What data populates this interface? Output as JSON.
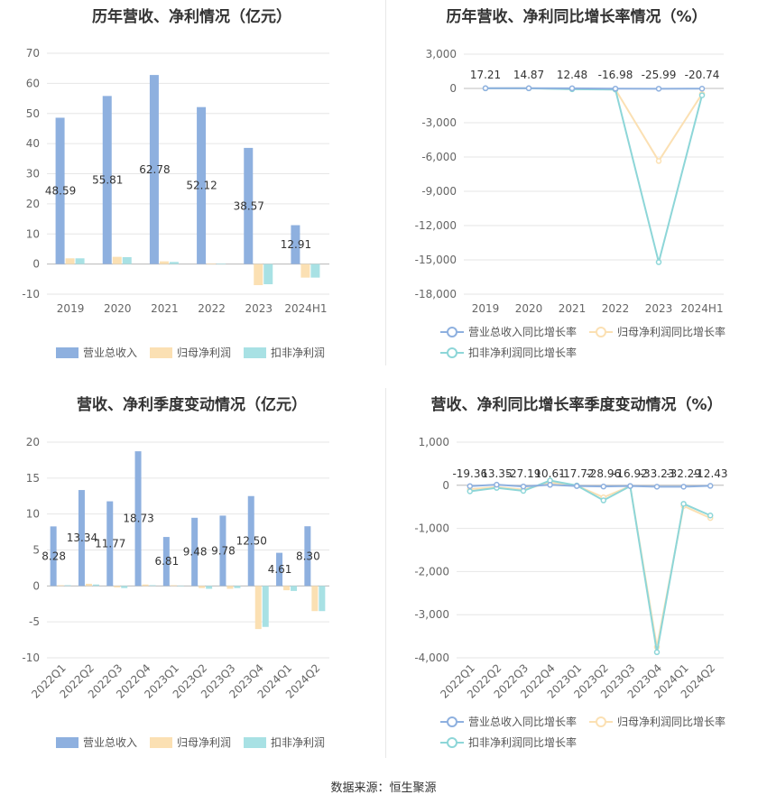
{
  "source": "数据来源：恒生聚源",
  "chart_data": [
    {
      "type": "bar",
      "title": "历年营收、净利情况（亿元）",
      "categories": [
        "2019",
        "2020",
        "2021",
        "2022",
        "2023",
        "2024H1"
      ],
      "ylim": [
        -10,
        70
      ],
      "yticks": [
        "-10",
        "0",
        "10",
        "20",
        "30",
        "40",
        "50",
        "60",
        "70"
      ],
      "series": [
        {
          "name": "营业总收入",
          "color": "#8eb0df",
          "values": [
            48.59,
            55.81,
            62.78,
            52.12,
            38.57,
            12.91
          ],
          "labels": [
            "48.59",
            "55.81",
            "62.78",
            "52.12",
            "38.57",
            "12.91"
          ]
        },
        {
          "name": "归母净利润",
          "color": "#fbe0b3",
          "values": [
            1.9,
            2.4,
            0.9,
            0.2,
            -7.0,
            -4.5
          ]
        },
        {
          "name": "扣非净利润",
          "color": "#a8e1e4",
          "values": [
            1.9,
            2.3,
            0.7,
            0.1,
            -6.7,
            -4.5
          ]
        }
      ]
    },
    {
      "type": "line",
      "title": "历年营收、净利同比增长率情况（%）",
      "categories": [
        "2019",
        "2020",
        "2021",
        "2022",
        "2023",
        "2024H1"
      ],
      "ylim": [
        -18000,
        3000
      ],
      "yticks": [
        "-18,000",
        "-15,000",
        "-12,000",
        "-9,000",
        "-6,000",
        "-3,000",
        "0",
        "3,000"
      ],
      "series": [
        {
          "name": "营业总收入同比增长率",
          "color": "#8eb0df",
          "values": [
            17.21,
            14.87,
            12.48,
            -16.98,
            -25.99,
            -20.74
          ],
          "labels": [
            "17.21",
            "14.87",
            "12.48",
            "-16.98",
            "-25.99",
            "-20.74"
          ]
        },
        {
          "name": "归母净利润同比增长率",
          "color": "#fbe0b3",
          "values": [
            10,
            20,
            -60,
            -85,
            -6350,
            -480
          ]
        },
        {
          "name": "扣非净利润同比增长率",
          "color": "#8dd6d8",
          "values": [
            12,
            10,
            -70,
            -95,
            -15200,
            -600
          ]
        }
      ]
    },
    {
      "type": "bar",
      "title": "营收、净利季度变动情况（亿元）",
      "categories": [
        "2022Q1",
        "2022Q2",
        "2022Q3",
        "2022Q4",
        "2023Q1",
        "2023Q2",
        "2023Q3",
        "2023Q4",
        "2024Q1",
        "2024Q2"
      ],
      "ylim": [
        -10,
        20
      ],
      "yticks": [
        "-10",
        "-5",
        "0",
        "5",
        "10",
        "15",
        "20"
      ],
      "series": [
        {
          "name": "营业总收入",
          "color": "#8eb0df",
          "values": [
            8.28,
            13.34,
            11.77,
            18.73,
            6.81,
            9.48,
            9.78,
            12.5,
            4.61,
            8.3
          ],
          "labels": [
            "8.28",
            "13.34",
            "11.77",
            "18.73",
            "6.81",
            "9.48",
            "9.78",
            "12.50",
            "4.61",
            "8.30"
          ]
        },
        {
          "name": "归母净利润",
          "color": "#fbe0b3",
          "values": [
            0.1,
            0.3,
            -0.2,
            0.2,
            0.1,
            -0.3,
            -0.4,
            -6.0,
            -0.6,
            -3.5
          ]
        },
        {
          "name": "扣非净利润",
          "color": "#a8e1e4",
          "values": [
            0.1,
            0.2,
            -0.3,
            0.1,
            0.0,
            -0.4,
            -0.3,
            -5.7,
            -0.7,
            -3.5
          ]
        }
      ]
    },
    {
      "type": "line",
      "title": "营收、净利同比增长率季度变动情况（%）",
      "categories": [
        "2022Q1",
        "2022Q2",
        "2022Q3",
        "2022Q4",
        "2023Q1",
        "2023Q2",
        "2023Q3",
        "2023Q4",
        "2024Q1",
        "2024Q2"
      ],
      "ylim": [
        -4000,
        1000
      ],
      "yticks": [
        "-4,000",
        "-3,000",
        "-2,000",
        "-1,000",
        "0",
        "1,000"
      ],
      "series": [
        {
          "name": "营业总收入同比增长率",
          "color": "#8eb0df",
          "values": [
            -19.36,
            13.35,
            -27.19,
            10.61,
            -17.72,
            -28.96,
            -16.92,
            -33.23,
            -32.29,
            -12.43
          ],
          "labels": [
            "-19.36",
            "13.35",
            "-27.19",
            "10.61",
            "-17.72",
            "-28.96",
            "-16.92",
            "-33.23",
            "-32.29",
            "-12.43"
          ]
        },
        {
          "name": "归母净利润同比增长率",
          "color": "#fbe0b3",
          "values": [
            -90,
            -40,
            -100,
            60,
            -10,
            -280,
            -20,
            -3750,
            -480,
            -760
          ]
        },
        {
          "name": "扣非净利润同比增长率",
          "color": "#8dd6d8",
          "values": [
            -140,
            -60,
            -130,
            110,
            -5,
            -350,
            -20,
            -3870,
            -430,
            -700
          ]
        }
      ]
    }
  ]
}
